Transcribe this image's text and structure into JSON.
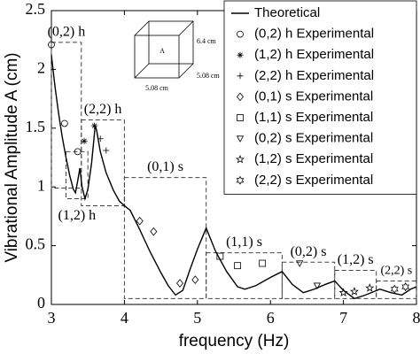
{
  "chart_data": {
    "type": "line",
    "xlabel": "frequency (Hz)",
    "ylabel": "Vibrational Amplitude A (cm)",
    "xlim": [
      3,
      8
    ],
    "xticks": [
      3,
      4,
      5,
      6,
      7,
      8
    ],
    "ylim": [
      0,
      2.5
    ],
    "yticks": [
      0,
      0.5,
      1,
      1.5,
      2,
      2.5
    ],
    "legend": "upper right",
    "series": [
      {
        "name": "Theoretical",
        "color": "#000000",
        "marker": "none",
        "x": [
          3.0,
          3.05,
          3.1,
          3.15,
          3.2,
          3.25,
          3.3,
          3.33,
          3.36,
          3.39,
          3.42,
          3.46,
          3.5,
          3.55,
          3.6,
          3.62,
          3.67,
          3.75,
          3.85,
          3.93,
          4.0,
          4.08,
          4.2,
          4.35,
          4.5,
          4.6,
          4.7,
          4.8,
          4.9,
          5.0,
          5.12,
          5.25,
          5.4,
          5.55,
          5.65,
          5.8,
          6.0,
          6.16,
          6.3,
          6.45,
          6.6,
          6.75,
          6.88,
          7.0,
          7.15,
          7.3,
          7.5,
          7.65,
          7.8,
          7.92,
          8.0
        ],
        "values": [
          2.12,
          1.85,
          1.62,
          1.42,
          1.25,
          1.1,
          0.98,
          0.95,
          1.05,
          1.16,
          1.0,
          0.9,
          0.98,
          1.2,
          1.52,
          1.48,
          1.3,
          1.12,
          0.97,
          0.88,
          0.84,
          0.8,
          0.65,
          0.45,
          0.27,
          0.16,
          0.08,
          0.12,
          0.3,
          0.47,
          0.65,
          0.45,
          0.28,
          0.15,
          0.13,
          0.16,
          0.23,
          0.28,
          0.17,
          0.1,
          0.13,
          0.17,
          0.2,
          0.12,
          0.05,
          0.08,
          0.13,
          0.1,
          0.08,
          0.13,
          0.15
        ]
      },
      {
        "name": "(0,2) h Experimental",
        "color": "#000000",
        "marker": "circle",
        "x": [
          3.0,
          3.18,
          3.36
        ],
        "values": [
          2.21,
          1.54,
          1.3
        ]
      },
      {
        "name": "(1,2) h Experimental",
        "color": "#000000",
        "marker": "asterisk",
        "x": [
          3.45,
          3.59
        ],
        "values": [
          1.39,
          1.52
        ]
      },
      {
        "name": "(2,2) h Experimental",
        "color": "#000000",
        "marker": "plus",
        "x": [
          3.67,
          3.75
        ],
        "values": [
          1.41,
          1.31
        ]
      },
      {
        "name": "(0,1) s Experimental",
        "color": "#000000",
        "marker": "diamond",
        "x": [
          4.21,
          4.4,
          4.76,
          4.97
        ],
        "values": [
          0.71,
          0.62,
          0.18,
          0.21
        ]
      },
      {
        "name": "(1,1) s Experimental",
        "color": "#000000",
        "marker": "square",
        "x": [
          5.31,
          5.55,
          5.89
        ],
        "values": [
          0.41,
          0.33,
          0.35
        ]
      },
      {
        "name": "(0,2) s Experimental",
        "color": "#000000",
        "marker": "triangle-down",
        "x": [
          6.4,
          6.64
        ],
        "values": [
          0.35,
          0.16
        ]
      },
      {
        "name": "(1,2) s Experimental",
        "color": "#000000",
        "marker": "star",
        "x": [
          7.0,
          7.15,
          7.36
        ],
        "values": [
          0.1,
          0.11,
          0.14
        ]
      },
      {
        "name": "(2,2) s Experimental",
        "color": "#000000",
        "marker": "hexagram",
        "x": [
          7.7,
          7.85
        ],
        "values": [
          0.13,
          0.15
        ]
      }
    ],
    "regions": [
      {
        "label": "(0,2) h",
        "x": [
          3.0,
          3.41
        ],
        "y": [
          0.99,
          2.23
        ]
      },
      {
        "label": "(1,2) h",
        "x": [
          3.2,
          3.5
        ],
        "y": [
          0.9,
          1.3
        ]
      },
      {
        "label": "(2,2) h",
        "x": [
          3.41,
          4.0
        ],
        "y": [
          0.84,
          1.57
        ]
      },
      {
        "label": "(0,1) s",
        "x": [
          4.0,
          5.12
        ],
        "y": [
          0.05,
          1.08
        ]
      },
      {
        "label": "(1,1) s",
        "x": [
          5.12,
          6.16
        ],
        "y": [
          0.05,
          0.44
        ]
      },
      {
        "label": "(0,2) s",
        "x": [
          6.16,
          6.88
        ],
        "y": [
          0.05,
          0.36
        ]
      },
      {
        "label": "(1,2) s",
        "x": [
          6.88,
          7.45
        ],
        "y": [
          0.05,
          0.29
        ]
      },
      {
        "label": "(2,2) s",
        "x": [
          7.45,
          8.0
        ],
        "y": [
          0.05,
          0.2
        ]
      }
    ],
    "inset": {
      "labels": [
        "6.4 cm",
        "A",
        "5.08 cm",
        "5.08 cm"
      ]
    }
  }
}
